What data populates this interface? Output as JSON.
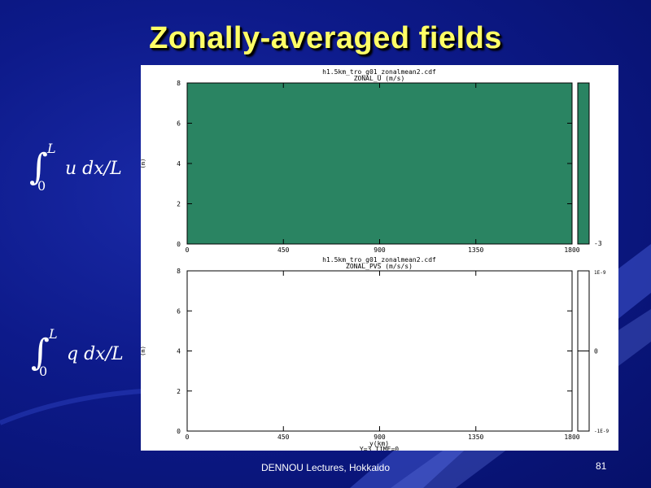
{
  "slide": {
    "title": "Zonally-averaged fields",
    "footer": "DENNOU Lectures, Hokkaido",
    "page_number": "81",
    "equation_top": "∫₀ᴸ u dx/L",
    "equation_bottom": "∫₀ᴸ q dx/L"
  },
  "colors": {
    "title": "#ffff66",
    "fill_top": "#2a8462",
    "background": "#0d1a8a"
  },
  "chart_data": [
    {
      "type": "heatmap",
      "file": "h1.5km_tro_g01_zonalmean2.cdf",
      "field": "ZONAL_U (m/s)",
      "x_ticks": [
        "0",
        "450",
        "900",
        "1350",
        "1800"
      ],
      "y_ticks": [
        "0",
        "2",
        "4",
        "6",
        "8"
      ],
      "xlim": [
        0,
        1800
      ],
      "ylim": [
        0,
        8
      ],
      "ylabel": "(m)",
      "colorbar_labels": [
        "-3"
      ],
      "fill": "uniform"
    },
    {
      "type": "heatmap",
      "file": "h1.5km_tro_g01_zonalmean2.cdf",
      "field": "ZONAL_PVS (m/s/s)",
      "x_ticks": [
        "0",
        "450",
        "900",
        "1350",
        "1800"
      ],
      "y_ticks": [
        "0",
        "2",
        "4",
        "6",
        "8"
      ],
      "xlim": [
        0,
        1800
      ],
      "ylim": [
        0,
        8
      ],
      "xlabel": "y(km)",
      "ylabel": "(m)",
      "caption": "Y=3     TIME=0",
      "colorbar_labels": [
        "1E-9",
        "0",
        "-1E-9"
      ],
      "fill": "empty"
    }
  ]
}
